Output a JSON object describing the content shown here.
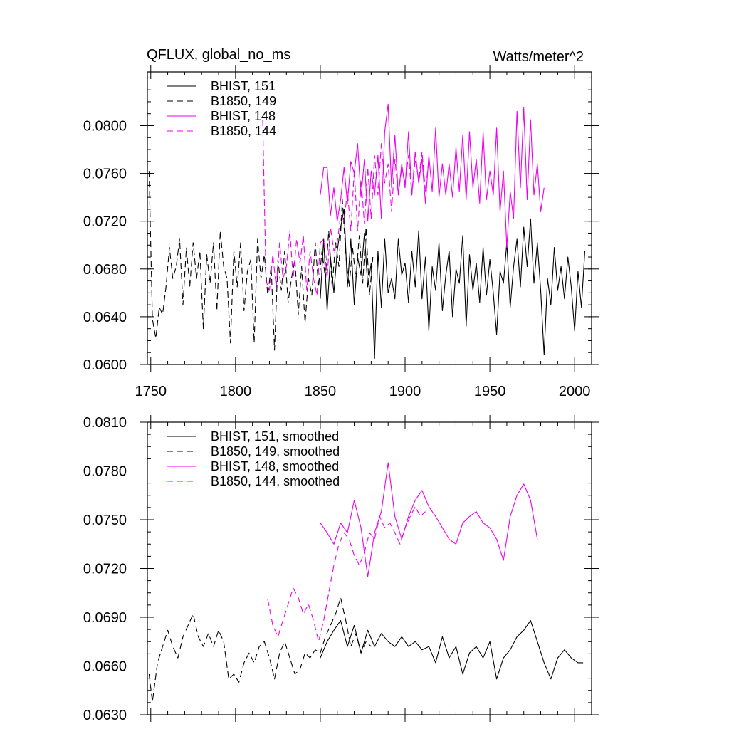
{
  "chart_data": [
    {
      "type": "line",
      "title_left": "QFLUX, global_no_ms",
      "title_right": "Watts/meter^2",
      "xlim": [
        1748,
        2010
      ],
      "ylim": [
        0.06,
        0.0845
      ],
      "x_ticks": [
        1750,
        1800,
        1850,
        1900,
        1950,
        2000
      ],
      "x_tick_labels": [
        "1750",
        "1800",
        "1850",
        "1900",
        "1950",
        "2000"
      ],
      "y_ticks": [
        0.06,
        0.064,
        0.068,
        0.072,
        0.076,
        0.08
      ],
      "y_tick_labels": [
        "0.0600",
        "0.0640",
        "0.0680",
        "0.0720",
        "0.0760",
        "0.0800"
      ],
      "legend_position": "top-left",
      "series": [
        {
          "name": "BHIST, 151",
          "color": "#000000",
          "dash": "solid",
          "x": [
            1850,
            1852,
            1854,
            1856,
            1858,
            1860,
            1862,
            1864,
            1866,
            1868,
            1870,
            1872,
            1874,
            1876,
            1878,
            1880,
            1882,
            1884,
            1886,
            1888,
            1890,
            1892,
            1894,
            1896,
            1898,
            1900,
            1902,
            1904,
            1906,
            1908,
            1910,
            1912,
            1914,
            1916,
            1918,
            1920,
            1922,
            1924,
            1926,
            1928,
            1930,
            1932,
            1934,
            1936,
            1938,
            1940,
            1942,
            1944,
            1946,
            1948,
            1950,
            1952,
            1954,
            1956,
            1958,
            1960,
            1962,
            1964,
            1966,
            1968,
            1970,
            1972,
            1974,
            1976,
            1978,
            1980,
            1982,
            1984,
            1986,
            1988,
            1990,
            1992,
            1994,
            1996,
            1998,
            2000,
            2002,
            2004,
            2006
          ],
          "y": [
            0.0655,
            0.0705,
            0.0645,
            0.069,
            0.066,
            0.0695,
            0.0715,
            0.073,
            0.0665,
            0.0705,
            0.065,
            0.069,
            0.0675,
            0.071,
            0.0665,
            0.0685,
            0.0605,
            0.0695,
            0.0648,
            0.0705,
            0.066,
            0.0672,
            0.0655,
            0.0705,
            0.0675,
            0.0685,
            0.0652,
            0.0695,
            0.0665,
            0.0712,
            0.0655,
            0.069,
            0.0628,
            0.0682,
            0.0662,
            0.0702,
            0.0645,
            0.0675,
            0.0695,
            0.064,
            0.068,
            0.0668,
            0.0708,
            0.0632,
            0.0692,
            0.0662,
            0.0685,
            0.0652,
            0.0698,
            0.0658,
            0.0688,
            0.066,
            0.0625,
            0.0678,
            0.0668,
            0.0702,
            0.0648,
            0.0682,
            0.0705,
            0.0665,
            0.0715,
            0.0682,
            0.0722,
            0.0668,
            0.0702,
            0.0662,
            0.0608,
            0.0672,
            0.065,
            0.0698,
            0.0662,
            0.0682,
            0.0655,
            0.069,
            0.0665,
            0.0628,
            0.0678,
            0.0648,
            0.0695
          ]
        },
        {
          "name": "B1850, 149",
          "color": "#000000",
          "dash": "dashed",
          "x": [
            1749,
            1751,
            1753,
            1755,
            1757,
            1759,
            1761,
            1763,
            1765,
            1767,
            1769,
            1771,
            1773,
            1775,
            1777,
            1779,
            1781,
            1783,
            1785,
            1787,
            1789,
            1791,
            1793,
            1795,
            1797,
            1799,
            1801,
            1803,
            1805,
            1807,
            1809,
            1811,
            1813,
            1815,
            1817,
            1819,
            1821,
            1823,
            1825,
            1827,
            1829,
            1831,
            1833,
            1835,
            1837,
            1839,
            1841,
            1843,
            1845,
            1847,
            1849,
            1851,
            1853,
            1855,
            1857,
            1859,
            1861,
            1863,
            1865,
            1867,
            1869,
            1871,
            1873,
            1875,
            1877,
            1879,
            1881
          ],
          "y": [
            0.0762,
            0.0638,
            0.0622,
            0.0648,
            0.0642,
            0.0665,
            0.0698,
            0.0672,
            0.0682,
            0.0705,
            0.065,
            0.0698,
            0.0665,
            0.0702,
            0.0672,
            0.0695,
            0.063,
            0.0692,
            0.0668,
            0.0702,
            0.0645,
            0.0712,
            0.0682,
            0.0672,
            0.0618,
            0.0695,
            0.0665,
            0.0702,
            0.0645,
            0.0678,
            0.0688,
            0.0618,
            0.0705,
            0.0672,
            0.0692,
            0.0658,
            0.0682,
            0.0612,
            0.0688,
            0.0662,
            0.0695,
            0.0652,
            0.0672,
            0.0688,
            0.0642,
            0.0682,
            0.0635,
            0.0672,
            0.0658,
            0.0702,
            0.0665,
            0.0695,
            0.0672,
            0.0712,
            0.0665,
            0.0702,
            0.0682,
            0.0738,
            0.0692,
            0.0665,
            0.0698,
            0.0672,
            0.0708,
            0.0668,
            0.0715,
            0.0658,
            0.069
          ]
        },
        {
          "name": "BHIST, 148",
          "color": "#ee00ee",
          "dash": "solid",
          "x": [
            1850,
            1852,
            1854,
            1856,
            1858,
            1860,
            1862,
            1864,
            1866,
            1868,
            1870,
            1872,
            1874,
            1876,
            1878,
            1880,
            1882,
            1884,
            1886,
            1888,
            1890,
            1892,
            1894,
            1896,
            1898,
            1900,
            1902,
            1904,
            1906,
            1908,
            1910,
            1912,
            1914,
            1916,
            1918,
            1920,
            1922,
            1924,
            1926,
            1928,
            1930,
            1932,
            1934,
            1936,
            1938,
            1940,
            1942,
            1944,
            1946,
            1948,
            1950,
            1952,
            1954,
            1956,
            1958,
            1960,
            1962,
            1964,
            1966,
            1968,
            1970,
            1972,
            1974,
            1976,
            1978,
            1980,
            1982
          ],
          "y": [
            0.0742,
            0.0765,
            0.0765,
            0.0725,
            0.0748,
            0.072,
            0.0738,
            0.0765,
            0.0735,
            0.077,
            0.076,
            0.0785,
            0.074,
            0.0772,
            0.072,
            0.0762,
            0.0742,
            0.0775,
            0.0722,
            0.0795,
            0.0818,
            0.0748,
            0.0792,
            0.0742,
            0.0768,
            0.0748,
            0.0795,
            0.0742,
            0.0778,
            0.0752,
            0.0772,
            0.0735,
            0.0775,
            0.0745,
            0.0798,
            0.074,
            0.0768,
            0.0742,
            0.0768,
            0.074,
            0.0782,
            0.0745,
            0.0792,
            0.0738,
            0.0795,
            0.0748,
            0.0772,
            0.0735,
            0.0795,
            0.0738,
            0.0762,
            0.0742,
            0.0798,
            0.0728,
            0.0762,
            0.0698,
            0.0745,
            0.0722,
            0.0812,
            0.0748,
            0.0815,
            0.0738,
            0.0805,
            0.0742,
            0.0768,
            0.0728,
            0.0748
          ]
        },
        {
          "name": "B1850, 144",
          "color": "#ee00ee",
          "dash": "dashed",
          "x": [
            1816,
            1818,
            1820,
            1822,
            1824,
            1826,
            1828,
            1830,
            1832,
            1834,
            1836,
            1838,
            1840,
            1842,
            1844,
            1846,
            1848,
            1850,
            1852,
            1854,
            1856,
            1858,
            1860,
            1862,
            1864,
            1866,
            1868,
            1870,
            1872,
            1874,
            1876,
            1878,
            1880,
            1882,
            1884,
            1886,
            1888,
            1890,
            1892,
            1894,
            1896,
            1898,
            1900,
            1902,
            1904,
            1906,
            1908,
            1910,
            1912,
            1914
          ],
          "y": [
            0.0805,
            0.067,
            0.0662,
            0.0692,
            0.0665,
            0.0702,
            0.0672,
            0.0682,
            0.0712,
            0.0672,
            0.0705,
            0.0685,
            0.0708,
            0.0662,
            0.0695,
            0.0672,
            0.0658,
            0.0702,
            0.0705,
            0.0672,
            0.0715,
            0.0695,
            0.0702,
            0.0725,
            0.072,
            0.0745,
            0.0712,
            0.0762,
            0.0712,
            0.0755,
            0.0718,
            0.0765,
            0.0722,
            0.0775,
            0.0742,
            0.0785,
            0.0752,
            0.0768,
            0.0728,
            0.0772,
            0.0742,
            0.0765,
            0.0752,
            0.0775,
            0.0742,
            0.0772,
            0.0755,
            0.0778,
            0.0745,
            0.0772
          ]
        }
      ]
    },
    {
      "type": "line",
      "title_left": "",
      "title_right": "",
      "xlim": [
        1748,
        2010
      ],
      "ylim": [
        0.063,
        0.081
      ],
      "x_ticks": [
        1750,
        1800,
        1850,
        1900,
        1950,
        2000
      ],
      "x_tick_labels": [
        "",
        "",
        "",
        "",
        "",
        ""
      ],
      "y_ticks": [
        0.063,
        0.066,
        0.069,
        0.072,
        0.075,
        0.078,
        0.081
      ],
      "y_tick_labels": [
        "0.0630",
        "0.0660",
        "0.0690",
        "0.0720",
        "0.0750",
        "0.0780",
        "0.0810"
      ],
      "legend_position": "top-left",
      "series": [
        {
          "name": "BHIST, 151, smoothed",
          "color": "#000000",
          "dash": "solid",
          "x": [
            1850,
            1854,
            1858,
            1862,
            1866,
            1870,
            1874,
            1878,
            1882,
            1886,
            1890,
            1894,
            1898,
            1902,
            1906,
            1910,
            1914,
            1918,
            1922,
            1926,
            1930,
            1934,
            1938,
            1942,
            1946,
            1950,
            1954,
            1958,
            1962,
            1966,
            1970,
            1974,
            1978,
            1982,
            1986,
            1990,
            1994,
            1998,
            2002,
            2005
          ],
          "y": [
            0.0665,
            0.0675,
            0.0682,
            0.0688,
            0.0672,
            0.0685,
            0.0668,
            0.0682,
            0.0672,
            0.068,
            0.0675,
            0.0672,
            0.0678,
            0.0672,
            0.0675,
            0.067,
            0.0672,
            0.0662,
            0.0678,
            0.0665,
            0.0672,
            0.0655,
            0.0668,
            0.0672,
            0.0665,
            0.0675,
            0.0652,
            0.0665,
            0.067,
            0.0678,
            0.0682,
            0.0688,
            0.0675,
            0.0662,
            0.0652,
            0.0665,
            0.067,
            0.0665,
            0.0662,
            0.0662
          ]
        },
        {
          "name": "B1850, 149, smoothed",
          "color": "#000000",
          "dash": "dashed",
          "x": [
            1749,
            1751,
            1754,
            1757,
            1760,
            1763,
            1766,
            1769,
            1772,
            1775,
            1778,
            1781,
            1784,
            1787,
            1790,
            1793,
            1796,
            1799,
            1802,
            1805,
            1808,
            1811,
            1814,
            1817,
            1820,
            1823,
            1826,
            1829,
            1832,
            1835,
            1838,
            1841,
            1844,
            1847,
            1850,
            1853,
            1856,
            1859,
            1862,
            1865,
            1868,
            1871,
            1874,
            1877,
            1880
          ],
          "y": [
            0.0655,
            0.0638,
            0.0662,
            0.0672,
            0.0682,
            0.0672,
            0.0665,
            0.0678,
            0.0685,
            0.0692,
            0.0678,
            0.0672,
            0.068,
            0.0672,
            0.0682,
            0.0675,
            0.0652,
            0.0655,
            0.065,
            0.0662,
            0.0668,
            0.0662,
            0.0672,
            0.0675,
            0.0665,
            0.0652,
            0.0668,
            0.0675,
            0.0665,
            0.0655,
            0.0658,
            0.0668,
            0.0665,
            0.067,
            0.0668,
            0.0678,
            0.0685,
            0.0692,
            0.0702,
            0.0688,
            0.0672,
            0.068,
            0.0668,
            0.0675,
            0.0672
          ]
        },
        {
          "name": "BHIST, 148, smoothed",
          "color": "#ee00ee",
          "dash": "solid",
          "x": [
            1850,
            1854,
            1858,
            1862,
            1866,
            1870,
            1874,
            1878,
            1882,
            1886,
            1890,
            1894,
            1898,
            1902,
            1906,
            1910,
            1914,
            1918,
            1922,
            1926,
            1930,
            1934,
            1938,
            1942,
            1946,
            1950,
            1954,
            1958,
            1962,
            1966,
            1970,
            1974,
            1978
          ],
          "y": [
            0.0748,
            0.0742,
            0.0735,
            0.0748,
            0.0742,
            0.0762,
            0.0745,
            0.0715,
            0.0742,
            0.0755,
            0.0785,
            0.0752,
            0.0738,
            0.0752,
            0.0762,
            0.0768,
            0.0758,
            0.0752,
            0.0745,
            0.0738,
            0.0735,
            0.0748,
            0.0752,
            0.0755,
            0.0748,
            0.0745,
            0.0738,
            0.0725,
            0.0752,
            0.0765,
            0.0772,
            0.0762,
            0.0738
          ]
        },
        {
          "name": "B1850, 144, smoothed",
          "color": "#ee00ee",
          "dash": "dashed",
          "x": [
            1819,
            1822,
            1825,
            1828,
            1831,
            1834,
            1837,
            1840,
            1843,
            1846,
            1849,
            1852,
            1855,
            1858,
            1861,
            1864,
            1867,
            1870,
            1873,
            1876,
            1879,
            1882,
            1885,
            1888,
            1891,
            1894,
            1897,
            1900,
            1903,
            1906,
            1909,
            1912
          ],
          "y": [
            0.0701,
            0.0685,
            0.0678,
            0.0688,
            0.0698,
            0.0708,
            0.0702,
            0.0692,
            0.0698,
            0.0688,
            0.0675,
            0.0688,
            0.0705,
            0.0722,
            0.0735,
            0.0742,
            0.0738,
            0.0728,
            0.0722,
            0.073,
            0.0742,
            0.0738,
            0.0752,
            0.0745,
            0.0748,
            0.0742,
            0.0735,
            0.0745,
            0.0752,
            0.0758,
            0.0752,
            0.0755
          ]
        }
      ]
    }
  ]
}
